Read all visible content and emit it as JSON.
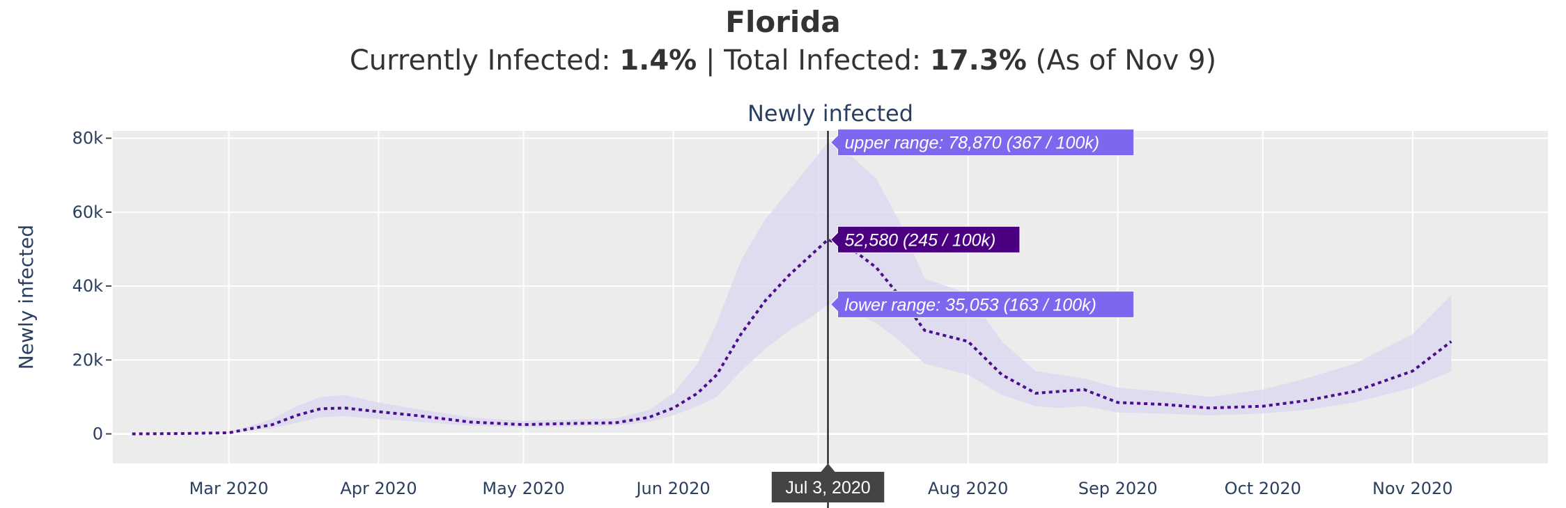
{
  "header": {
    "state": "Florida",
    "currently_label": "Currently Infected: ",
    "currently_value": "1.4%",
    "separator": " | ",
    "total_label": "Total Infected: ",
    "total_value": "17.3%",
    "as_of": " (As of Nov 9)"
  },
  "colors": {
    "plot_bg": "#ececec",
    "line": "#4b0f8c",
    "band": "#dcd8f0",
    "hover_range": "#7b68ee",
    "hover_main": "#4b0082",
    "hover_date": "#444444"
  },
  "chart_data": {
    "type": "line",
    "title": "Newly infected",
    "ylabel": "Newly infected",
    "xlabel": "",
    "ylim": [
      -8000,
      82000
    ],
    "xlim": [
      "2020-02-06",
      "2020-11-29"
    ],
    "x_ticks": [
      "2020-03-01",
      "2020-04-01",
      "2020-05-01",
      "2020-06-01",
      "2020-07-01",
      "2020-08-01",
      "2020-09-01",
      "2020-10-01",
      "2020-11-01"
    ],
    "x_tick_labels": [
      "Mar 2020",
      "Apr 2020",
      "May 2020",
      "Jun 2020",
      "Jul 2020",
      "Aug 2020",
      "Sep 2020",
      "Oct 2020",
      "Nov 2020"
    ],
    "y_ticks": [
      0,
      20000,
      40000,
      60000,
      80000
    ],
    "y_tick_labels": [
      "0",
      "20k",
      "40k",
      "60k",
      "80k"
    ],
    "grid": true,
    "series": [
      {
        "x": [
          "2020-02-10",
          "2020-02-20",
          "2020-03-01",
          "2020-03-10",
          "2020-03-15",
          "2020-03-20",
          "2020-03-25",
          "2020-04-01",
          "2020-04-10",
          "2020-04-20",
          "2020-05-01",
          "2020-05-10",
          "2020-05-20",
          "2020-05-27",
          "2020-06-01",
          "2020-06-06",
          "2020-06-10",
          "2020-06-15",
          "2020-06-20",
          "2020-06-25",
          "2020-06-30",
          "2020-07-03",
          "2020-07-08",
          "2020-07-13",
          "2020-07-18",
          "2020-07-23",
          "2020-08-01",
          "2020-08-08",
          "2020-08-15",
          "2020-08-20",
          "2020-08-25",
          "2020-09-01",
          "2020-09-10",
          "2020-09-20",
          "2020-10-01",
          "2020-10-10",
          "2020-10-20",
          "2020-11-01",
          "2020-11-09"
        ],
        "values": [
          0,
          100,
          300,
          2500,
          5000,
          6800,
          7000,
          6000,
          4800,
          3200,
          2500,
          2800,
          3000,
          4500,
          7000,
          11000,
          16000,
          27000,
          36000,
          43000,
          49000,
          52580,
          50000,
          45000,
          37000,
          28000,
          25000,
          16000,
          11000,
          11500,
          12000,
          8500,
          8000,
          7000,
          7500,
          9000,
          11500,
          17000,
          25000
        ]
      },
      {
        "name": "upper range",
        "x": [
          "2020-02-10",
          "2020-02-20",
          "2020-03-01",
          "2020-03-10",
          "2020-03-15",
          "2020-03-20",
          "2020-03-25",
          "2020-04-01",
          "2020-04-10",
          "2020-04-20",
          "2020-05-01",
          "2020-05-10",
          "2020-05-20",
          "2020-05-27",
          "2020-06-01",
          "2020-06-06",
          "2020-06-10",
          "2020-06-15",
          "2020-06-20",
          "2020-06-25",
          "2020-06-30",
          "2020-07-03",
          "2020-07-08",
          "2020-07-13",
          "2020-07-18",
          "2020-07-23",
          "2020-08-01",
          "2020-08-08",
          "2020-08-15",
          "2020-08-20",
          "2020-08-25",
          "2020-09-01",
          "2020-09-10",
          "2020-09-20",
          "2020-10-01",
          "2020-10-10",
          "2020-10-20",
          "2020-11-01",
          "2020-11-09"
        ],
        "values": [
          0,
          150,
          500,
          4000,
          7500,
          10000,
          10500,
          8500,
          6500,
          4500,
          3500,
          3800,
          4200,
          6500,
          11000,
          19000,
          30000,
          47000,
          58000,
          66000,
          74000,
          78870,
          75000,
          69000,
          57000,
          42000,
          38000,
          25000,
          17000,
          16000,
          15000,
          12500,
          11500,
          10000,
          12000,
          15000,
          19000,
          27000,
          37500
        ]
      },
      {
        "name": "lower range",
        "x": [
          "2020-02-10",
          "2020-02-20",
          "2020-03-01",
          "2020-03-10",
          "2020-03-15",
          "2020-03-20",
          "2020-03-25",
          "2020-04-01",
          "2020-04-10",
          "2020-04-20",
          "2020-05-01",
          "2020-05-10",
          "2020-05-20",
          "2020-05-27",
          "2020-06-01",
          "2020-06-06",
          "2020-06-10",
          "2020-06-15",
          "2020-06-20",
          "2020-06-25",
          "2020-06-30",
          "2020-07-03",
          "2020-07-08",
          "2020-07-13",
          "2020-07-18",
          "2020-07-23",
          "2020-08-01",
          "2020-08-08",
          "2020-08-15",
          "2020-08-20",
          "2020-08-25",
          "2020-09-01",
          "2020-09-10",
          "2020-09-20",
          "2020-10-01",
          "2020-10-10",
          "2020-10-20",
          "2020-11-01",
          "2020-11-09"
        ],
        "values": [
          0,
          60,
          200,
          1500,
          3000,
          4500,
          4800,
          4000,
          3200,
          2200,
          1800,
          2000,
          2200,
          3200,
          5000,
          7500,
          10000,
          17000,
          23000,
          28000,
          32000,
          35053,
          33000,
          30000,
          25000,
          19000,
          16000,
          10500,
          7500,
          7000,
          7500,
          5800,
          5500,
          5000,
          5500,
          6500,
          8500,
          12500,
          17000
        ]
      }
    ],
    "hover": {
      "date": "2020-07-03",
      "date_label": "Jul 3, 2020",
      "value": 52580,
      "upper": 78870,
      "lower": 35053,
      "upper_label": "upper range: 78,870 (367 / 100k)",
      "value_label": "52,580 (245 / 100k)",
      "lower_label": "lower range: 35,053 (163 / 100k)"
    }
  }
}
